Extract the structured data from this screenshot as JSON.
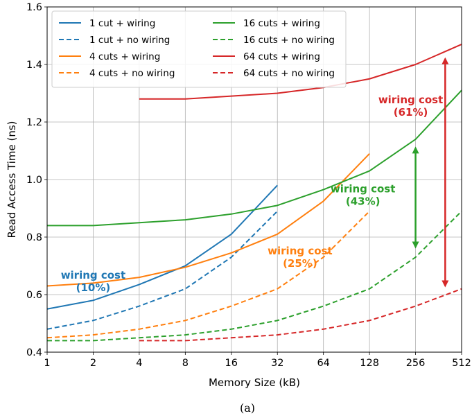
{
  "chart_data": {
    "type": "line",
    "title": "",
    "xlabel": "Memory Size (kB)",
    "ylabel": "Read Access Time (ns)",
    "caption": "(a)",
    "x_scale": "log2",
    "x_ticks": [
      1,
      2,
      4,
      8,
      16,
      32,
      64,
      128,
      256,
      512
    ],
    "x_tick_labels": [
      "1",
      "2",
      "4",
      "8",
      "16",
      "32",
      "64",
      "128",
      "256",
      "512"
    ],
    "y_ticks": [
      0.4,
      0.6,
      0.8,
      1.0,
      1.2,
      1.4,
      1.6
    ],
    "y_tick_labels": [
      "0.4",
      "0.6",
      "0.8",
      "1.0",
      "1.2",
      "1.4",
      "1.6"
    ],
    "xlim": [
      1,
      512
    ],
    "ylim": [
      0.4,
      1.6
    ],
    "grid": true,
    "legend_position": "top-left",
    "legend_columns": 2,
    "series": [
      {
        "name": "1 cut + wiring",
        "color": "#1f77b4",
        "dash": "solid",
        "x": [
          1,
          2,
          4,
          8,
          16,
          32
        ],
        "y": [
          0.55,
          0.58,
          0.635,
          0.7,
          0.81,
          0.98
        ]
      },
      {
        "name": "1 cut + no wiring",
        "color": "#1f77b4",
        "dash": "dashed",
        "x": [
          1,
          2,
          4,
          8,
          16,
          32
        ],
        "y": [
          0.48,
          0.51,
          0.56,
          0.62,
          0.73,
          0.89
        ]
      },
      {
        "name": "4 cuts + wiring",
        "color": "#ff7f0e",
        "dash": "solid",
        "x": [
          1,
          2,
          4,
          8,
          16,
          32,
          64,
          128
        ],
        "y": [
          0.63,
          0.64,
          0.66,
          0.695,
          0.745,
          0.81,
          0.925,
          1.09
        ]
      },
      {
        "name": "4 cuts + no wiring",
        "color": "#ff7f0e",
        "dash": "dashed",
        "x": [
          1,
          2,
          4,
          8,
          16,
          32,
          64,
          128
        ],
        "y": [
          0.45,
          0.46,
          0.48,
          0.51,
          0.56,
          0.62,
          0.73,
          0.89
        ]
      },
      {
        "name": "16 cuts + wiring",
        "color": "#2ca02c",
        "dash": "solid",
        "x": [
          1,
          2,
          4,
          8,
          16,
          32,
          64,
          128,
          256,
          512
        ],
        "y": [
          0.84,
          0.84,
          0.85,
          0.86,
          0.88,
          0.91,
          0.965,
          1.03,
          1.14,
          1.31
        ]
      },
      {
        "name": "16 cuts + no wiring",
        "color": "#2ca02c",
        "dash": "dashed",
        "x": [
          1,
          2,
          4,
          8,
          16,
          32,
          64,
          128,
          256,
          512
        ],
        "y": [
          0.44,
          0.44,
          0.45,
          0.46,
          0.48,
          0.51,
          0.56,
          0.62,
          0.73,
          0.89
        ]
      },
      {
        "name": "64 cuts + wiring",
        "color": "#d62728",
        "dash": "solid",
        "x": [
          4,
          8,
          16,
          32,
          64,
          128,
          256,
          512
        ],
        "y": [
          1.28,
          1.28,
          1.29,
          1.3,
          1.32,
          1.35,
          1.4,
          1.47
        ]
      },
      {
        "name": "64 cuts + no wiring",
        "color": "#d62728",
        "dash": "dashed",
        "x": [
          4,
          8,
          16,
          32,
          64,
          128,
          256,
          512
        ],
        "y": [
          0.44,
          0.44,
          0.45,
          0.46,
          0.48,
          0.51,
          0.56,
          0.62
        ]
      }
    ],
    "annotations": [
      {
        "lines": [
          "wiring cost",
          "(10%)"
        ],
        "color": "#1f77b4",
        "x": 2,
        "y": 0.655
      },
      {
        "lines": [
          "wiring cost",
          "(25%)"
        ],
        "color": "#ff7f0e",
        "x": 45,
        "y": 0.74
      },
      {
        "lines": [
          "wiring cost",
          "(43%)"
        ],
        "color": "#2ca02c",
        "x": 116,
        "y": 0.955
      },
      {
        "lines": [
          "wiring cost",
          "(61%)"
        ],
        "color": "#d62728",
        "x": 238,
        "y": 1.265
      }
    ],
    "arrows": [
      {
        "color": "#2ca02c",
        "x": 256,
        "y_from": 1.11,
        "y_to": 0.765
      },
      {
        "color": "#d62728",
        "x": 400,
        "y_from": 1.42,
        "y_to": 0.63
      }
    ]
  }
}
